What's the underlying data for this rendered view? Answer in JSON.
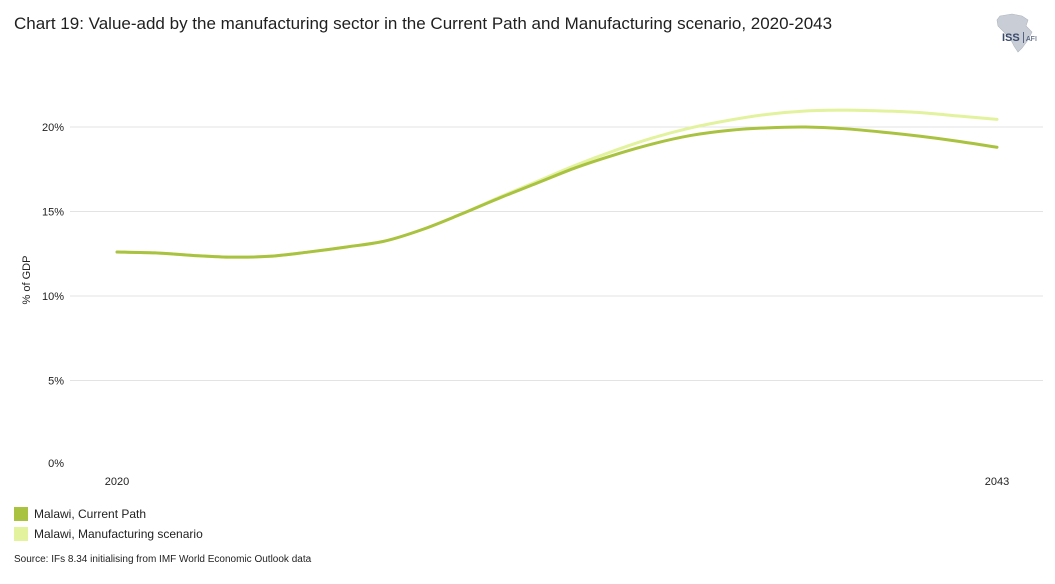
{
  "page": {
    "title": "Chart 19: Value-add by the manufacturing sector in the Current Path and Manufacturing scenario, 2020-2043",
    "source": "Source: IFs 8.34 initialising from IMF World Economic Outlook data",
    "logo": {
      "text": "ISS",
      "subtext": "AFI",
      "icon": "africa-map-icon"
    }
  },
  "chart_data": {
    "type": "line",
    "title": "Chart 19: Value-add by the manufacturing sector in the Current Path and Manufacturing scenario, 2020-2043",
    "xlabel": "",
    "ylabel": "% of GDP",
    "x": [
      2020,
      2021,
      2022,
      2023,
      2024,
      2025,
      2026,
      2027,
      2028,
      2029,
      2030,
      2031,
      2032,
      2033,
      2034,
      2035,
      2036,
      2037,
      2038,
      2039,
      2040,
      2041,
      2042,
      2043
    ],
    "x_tick_labels": [
      "2020",
      "2043"
    ],
    "xlim": [
      2020,
      2043
    ],
    "ylim": [
      0,
      22
    ],
    "y_ticks": [
      0,
      5,
      10,
      15,
      20
    ],
    "y_tick_labels": [
      "0%",
      "5%",
      "10%",
      "15%",
      "20%"
    ],
    "grid": true,
    "legend_position": "bottom-left",
    "series": [
      {
        "name": "Malawi, Current Path",
        "color": "#a9c23f",
        "values": [
          12.6,
          12.55,
          12.4,
          12.3,
          12.35,
          12.6,
          12.9,
          13.25,
          13.95,
          14.85,
          15.8,
          16.7,
          17.6,
          18.35,
          19.0,
          19.5,
          19.8,
          19.95,
          20.0,
          19.9,
          19.7,
          19.45,
          19.15,
          18.8
        ]
      },
      {
        "name": "Malawi, Manufacturing scenario",
        "color": "#e2f29d",
        "values": [
          12.6,
          12.55,
          12.4,
          12.3,
          12.35,
          12.6,
          12.9,
          13.25,
          13.95,
          14.85,
          15.85,
          16.8,
          17.75,
          18.6,
          19.35,
          19.95,
          20.4,
          20.75,
          20.95,
          21.0,
          20.95,
          20.85,
          20.65,
          20.45
        ]
      }
    ]
  }
}
